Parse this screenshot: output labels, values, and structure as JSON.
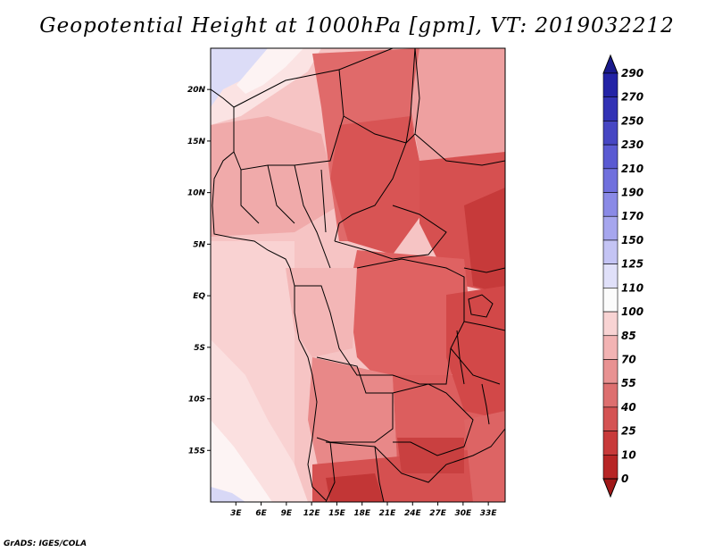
{
  "title": "Geopotential Height at 1000hPa [gpm], VT: 2019032212",
  "credit": "GrADS: IGES/COLA",
  "map": {
    "projection": "latlon",
    "lon_range": [
      0,
      35
    ],
    "lat_range": [
      -20,
      24
    ],
    "lat_ticks": [
      {
        "value": 20,
        "label": "20N"
      },
      {
        "value": 15,
        "label": "15N"
      },
      {
        "value": 10,
        "label": "10N"
      },
      {
        "value": 5,
        "label": "5N"
      },
      {
        "value": 0,
        "label": "EQ"
      },
      {
        "value": -5,
        "label": "5S"
      },
      {
        "value": -10,
        "label": "10S"
      },
      {
        "value": -15,
        "label": "15S"
      }
    ],
    "lon_ticks": [
      {
        "value": 3,
        "label": "3E"
      },
      {
        "value": 6,
        "label": "6E"
      },
      {
        "value": 9,
        "label": "9E"
      },
      {
        "value": 12,
        "label": "12E"
      },
      {
        "value": 15,
        "label": "15E"
      },
      {
        "value": 18,
        "label": "18E"
      },
      {
        "value": 21,
        "label": "21E"
      },
      {
        "value": 24,
        "label": "24E"
      },
      {
        "value": 27,
        "label": "27E"
      },
      {
        "value": 30,
        "label": "30E"
      },
      {
        "value": 33,
        "label": "33E"
      }
    ]
  },
  "colorbar": {
    "labels": [
      "290",
      "270",
      "250",
      "230",
      "210",
      "190",
      "170",
      "150",
      "125",
      "110",
      "100",
      "85",
      "70",
      "55",
      "40",
      "25",
      "10",
      "0"
    ],
    "colors": [
      "#1a1a8c",
      "#2323a6",
      "#3232b5",
      "#4646c3",
      "#5a5ad2",
      "#7070dd",
      "#8a8ae6",
      "#a6a6ee",
      "#c4c4f4",
      "#e0e0f9",
      "#fbfbfb",
      "#f8d3d3",
      "#f2b3b3",
      "#e89292",
      "#dd6f6f",
      "#d45353",
      "#c83a3a",
      "#b72626",
      "#a01818"
    ]
  }
}
